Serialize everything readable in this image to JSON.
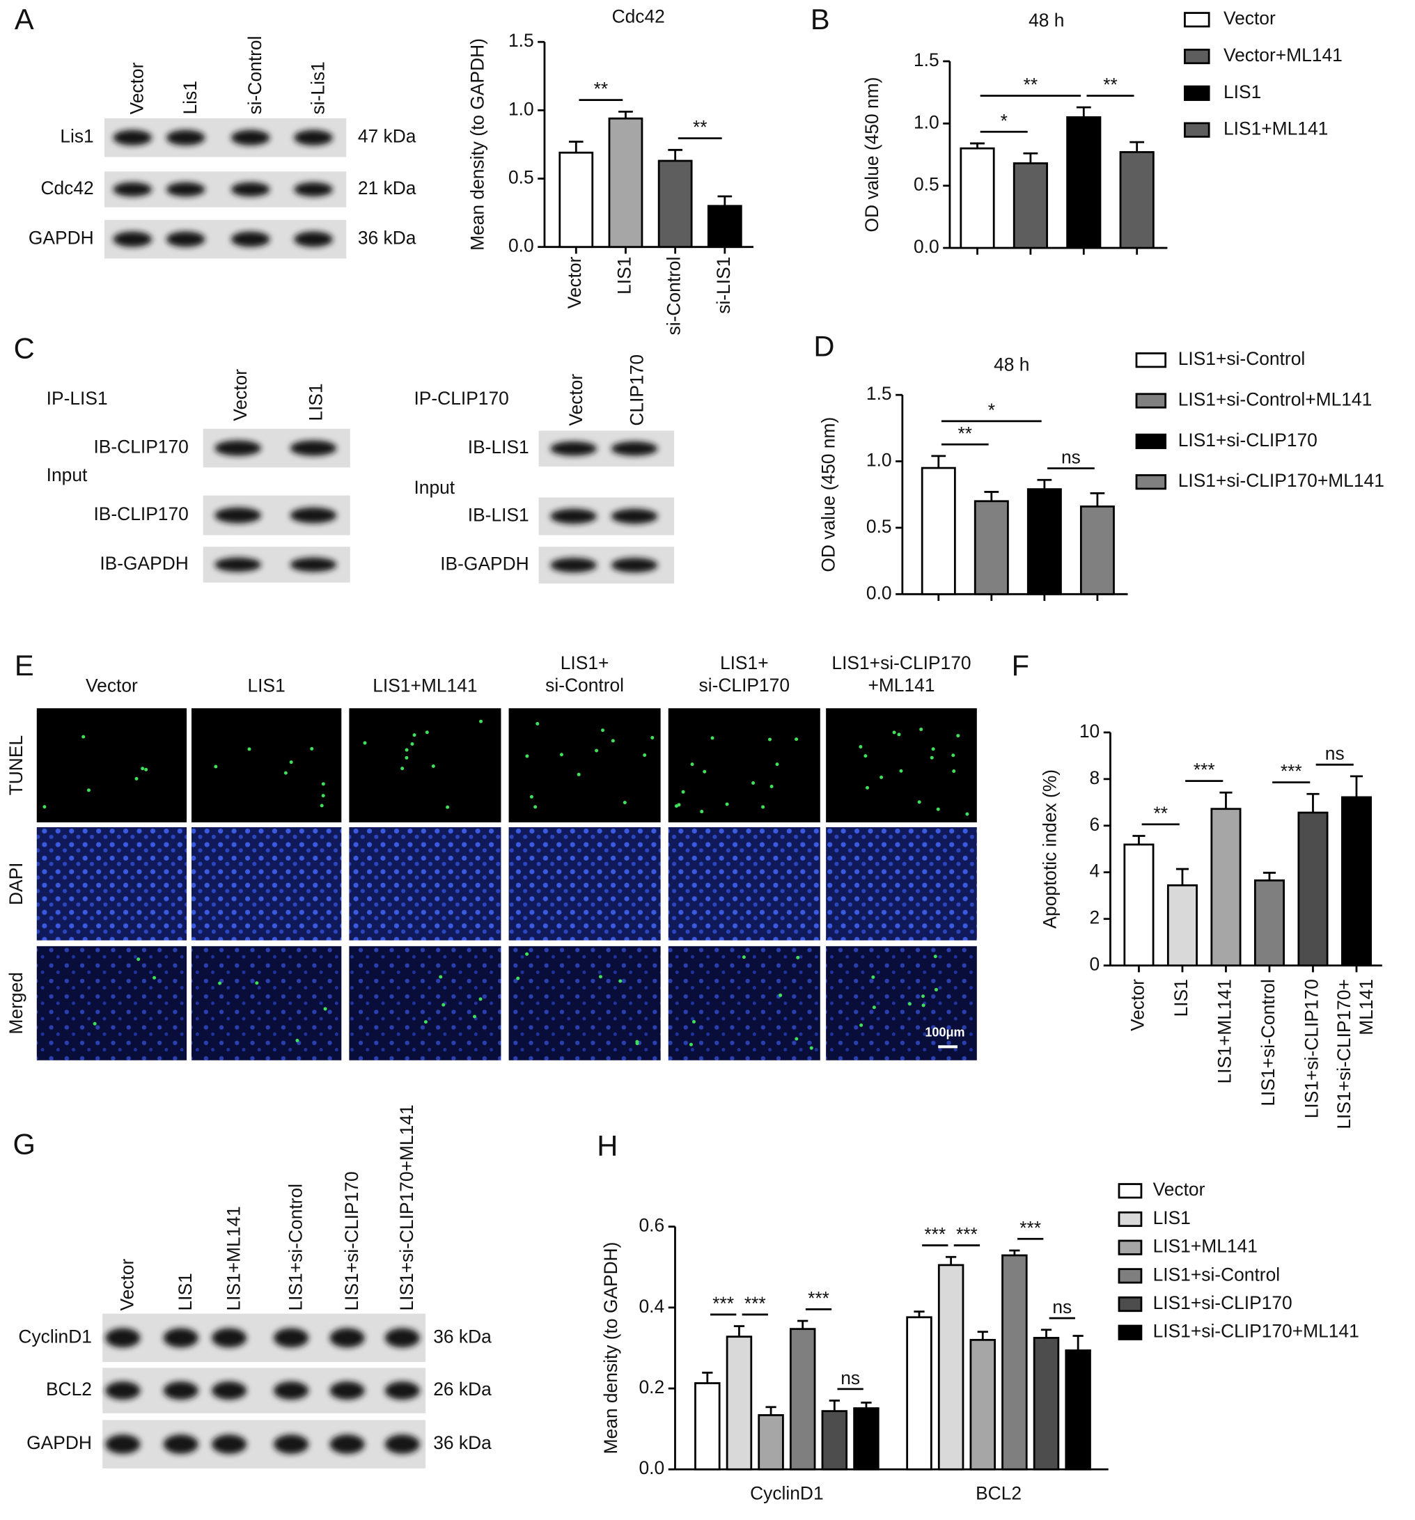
{
  "panel_labels": [
    "A",
    "B",
    "C",
    "D",
    "E",
    "F",
    "G",
    "H"
  ],
  "blot_a": {
    "lanes": [
      "Vector",
      "Lis1",
      "si-Control",
      "si-Lis1"
    ],
    "rows": [
      {
        "protein": "Lis1",
        "size": "47 kDa"
      },
      {
        "protein": "Cdc42",
        "size": "21 kDa"
      },
      {
        "protein": "GAPDH",
        "size": "36 kDa"
      }
    ]
  },
  "blot_c": [
    {
      "title": "IP-LIS1",
      "lanes": [
        "Vector",
        "LIS1"
      ],
      "ip_row": "IB-CLIP170",
      "input": "Input",
      "input_rows": [
        "IB-CLIP170",
        "IB-GAPDH"
      ]
    },
    {
      "title": "IP-CLIP170",
      "lanes": [
        "Vector",
        "CLIP170"
      ],
      "ip_row": "IB-LIS1",
      "input": "Input",
      "input_rows": [
        "IB-LIS1",
        "IB-GAPDH"
      ]
    }
  ],
  "images_e": {
    "columns": [
      "Vector",
      "LIS1",
      "LIS1+ML141",
      "LIS1+\nsi-Control",
      "LIS1+\nsi-CLIP170",
      "LIS1+si-CLIP170\n+ML141"
    ],
    "rows": [
      "TUNEL",
      "DAPI",
      "Merged"
    ],
    "scale_bar": "100μm"
  },
  "blot_g": {
    "lanes": [
      "Vector",
      "LIS1",
      "LIS1+ML141",
      "LIS1+si-Control",
      "LIS1+si-CLIP170",
      "LIS1+si-CLIP170+ML141"
    ],
    "rows": [
      {
        "protein": "CyclinD1",
        "size": "36 kDa"
      },
      {
        "protein": "BCL2",
        "size": "26 kDa"
      },
      {
        "protein": "GAPDH",
        "size": "36 kDa"
      }
    ]
  },
  "chart_data": [
    {
      "type": "bar",
      "title": "Cdc42",
      "y_label": "Mean density (to GAPDH)",
      "categories": [
        "Vector",
        "LIS1",
        "si-Control",
        "si-LIS1"
      ],
      "values": [
        0.69,
        0.94,
        0.63,
        0.3
      ],
      "errors": [
        0.08,
        0.05,
        0.08,
        0.07
      ],
      "colors": [
        "#ffffff",
        "#a6a6a6",
        "#5e5e5e",
        "#000000"
      ],
      "ylim": [
        0,
        1.5
      ],
      "yticks": [
        {
          "value": 0,
          "label": "0.0"
        },
        0.5,
        {
          "value": 1,
          "label": "1.0"
        },
        1.5
      ],
      "annotations": [
        {
          "label": "**",
          "between": [
            0,
            1
          ]
        },
        {
          "label": "**",
          "between": [
            2,
            3
          ]
        }
      ]
    },
    {
      "type": "bar",
      "title": "48 h",
      "y_label": "OD value (450 nm)",
      "legend": "right",
      "series": [
        {
          "name": "Vector",
          "color": "#ffffff",
          "values": [
            0.8
          ],
          "errors": [
            0.04
          ]
        },
        {
          "name": "Vector+ML141",
          "color": "#5e5e5e",
          "values": [
            0.68
          ],
          "errors": [
            0.08
          ]
        },
        {
          "name": "LIS1",
          "color": "#000000",
          "values": [
            1.05
          ],
          "errors": [
            0.08
          ]
        },
        {
          "name": "LIS1+ML141",
          "color": "#5e5e5e",
          "values": [
            0.77
          ],
          "errors": [
            0.08
          ]
        }
      ],
      "ylim": [
        0,
        1.5
      ],
      "yticks": [
        {
          "value": 0,
          "label": "0.0"
        },
        0.5,
        {
          "value": 1,
          "label": "1.0"
        },
        1.5
      ],
      "annotations": [
        {
          "label": "*",
          "between": [
            0,
            1
          ]
        },
        {
          "label": "**",
          "between": [
            0,
            2
          ]
        },
        {
          "label": "**",
          "between": [
            2,
            3
          ]
        }
      ]
    },
    {
      "type": "bar",
      "title": "48 h",
      "y_label": "OD value (450 nm)",
      "legend": "right",
      "series": [
        {
          "name": "LIS1+si-Control",
          "color": "#ffffff",
          "values": [
            0.95
          ],
          "errors": [
            0.09
          ]
        },
        {
          "name": "LIS1+si-Control+ML141",
          "color": "#808080",
          "values": [
            0.7
          ],
          "errors": [
            0.07
          ]
        },
        {
          "name": "LIS1+si-CLIP170",
          "color": "#000000",
          "values": [
            0.79
          ],
          "errors": [
            0.07
          ]
        },
        {
          "name": "LIS1+si-CLIP170+ML141",
          "color": "#808080",
          "values": [
            0.66
          ],
          "errors": [
            0.1
          ]
        }
      ],
      "ylim": [
        0,
        1.5
      ],
      "yticks": [
        {
          "value": 0,
          "label": "0.0"
        },
        0.5,
        {
          "value": 1,
          "label": "1.0"
        },
        1.5
      ],
      "annotations": [
        {
          "label": "**",
          "between": [
            0,
            1
          ]
        },
        {
          "label": "*",
          "between": [
            0,
            2
          ]
        },
        {
          "label": "ns",
          "between": [
            2,
            3
          ]
        }
      ]
    },
    {
      "type": "bar",
      "y_label": "Apoptotic index (%)",
      "categories": [
        "Vector",
        "LIS1",
        "LIS1+ML141",
        "LIS1+si-Control",
        "LIS1+si-CLIP170",
        "LIS1+si-CLIP170+\nML141"
      ],
      "values": [
        5.19,
        3.44,
        6.72,
        3.65,
        6.56,
        7.22
      ],
      "errors": [
        0.37,
        0.7,
        0.7,
        0.33,
        0.8,
        0.9
      ],
      "colors": [
        "#ffffff",
        "#d9d9d9",
        "#a6a6a6",
        "#7f7f7f",
        "#4d4d4d",
        "#000000"
      ],
      "ylim": [
        0,
        10
      ],
      "yticks": [
        0,
        2,
        4,
        6,
        8,
        10
      ],
      "annotations": [
        {
          "label": "**",
          "between": [
            0,
            1
          ]
        },
        {
          "label": "***",
          "between": [
            1,
            2
          ]
        },
        {
          "label": "***",
          "between": [
            3,
            4
          ]
        },
        {
          "label": "ns",
          "between": [
            4,
            5
          ]
        }
      ]
    },
    {
      "type": "bar",
      "y_label": "Mean density (to GAPDH)",
      "legend": "right",
      "categories": [
        "CyclinD1",
        "BCL2"
      ],
      "series": [
        {
          "name": "Vector",
          "color": "#ffffff",
          "values": [
            0.213,
            0.376
          ],
          "errors": [
            0.026,
            0.014
          ]
        },
        {
          "name": "LIS1",
          "color": "#d9d9d9",
          "values": [
            0.328,
            0.505
          ],
          "errors": [
            0.026,
            0.02
          ]
        },
        {
          "name": "LIS1+ML141",
          "color": "#a6a6a6",
          "values": [
            0.134,
            0.32
          ],
          "errors": [
            0.02,
            0.02
          ]
        },
        {
          "name": "LIS1+si-Control",
          "color": "#7f7f7f",
          "values": [
            0.347,
            0.529
          ],
          "errors": [
            0.02,
            0.012
          ]
        },
        {
          "name": "LIS1+si-CLIP170",
          "color": "#4d4d4d",
          "values": [
            0.144,
            0.325
          ],
          "errors": [
            0.026,
            0.02
          ]
        },
        {
          "name": "LIS1+si-CLIP170+ML141",
          "color": "#000000",
          "values": [
            0.151,
            0.294
          ],
          "errors": [
            0.014,
            0.036
          ]
        }
      ],
      "ylim": [
        0,
        0.6
      ],
      "yticks": [
        {
          "value": 0,
          "label": "0.0"
        },
        0.2,
        0.4,
        0.6
      ],
      "annotations": [
        {
          "label": "***",
          "category": 0,
          "between": [
            0,
            1
          ]
        },
        {
          "label": "***",
          "category": 0,
          "between": [
            1,
            2
          ]
        },
        {
          "label": "***",
          "category": 0,
          "between": [
            3,
            4
          ]
        },
        {
          "label": "ns",
          "category": 0,
          "between": [
            4,
            5
          ]
        },
        {
          "label": "***",
          "category": 1,
          "between": [
            0,
            1
          ]
        },
        {
          "label": "***",
          "category": 1,
          "between": [
            1,
            2
          ]
        },
        {
          "label": "***",
          "category": 1,
          "between": [
            3,
            4
          ]
        },
        {
          "label": "ns",
          "category": 1,
          "between": [
            4,
            5
          ]
        }
      ]
    }
  ]
}
